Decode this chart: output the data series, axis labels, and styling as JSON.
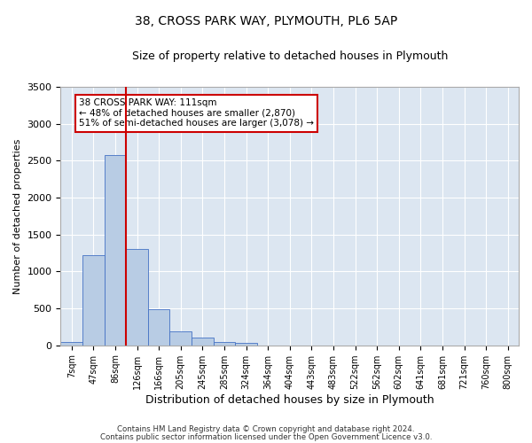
{
  "title": "38, CROSS PARK WAY, PLYMOUTH, PL6 5AP",
  "subtitle": "Size of property relative to detached houses in Plymouth",
  "xlabel": "Distribution of detached houses by size in Plymouth",
  "ylabel": "Number of detached properties",
  "categories": [
    "7sqm",
    "47sqm",
    "86sqm",
    "126sqm",
    "166sqm",
    "205sqm",
    "245sqm",
    "285sqm",
    "324sqm",
    "364sqm",
    "404sqm",
    "443sqm",
    "483sqm",
    "522sqm",
    "562sqm",
    "602sqm",
    "641sqm",
    "681sqm",
    "721sqm",
    "760sqm",
    "800sqm"
  ],
  "values": [
    50,
    1220,
    2580,
    1310,
    490,
    190,
    100,
    50,
    30,
    0,
    0,
    0,
    0,
    0,
    0,
    0,
    0,
    0,
    0,
    0,
    0
  ],
  "bar_color": "#b8cce4",
  "bar_edgecolor": "#4472c4",
  "vline_x": 2.5,
  "vline_color": "#cc0000",
  "annotation_text": "38 CROSS PARK WAY: 111sqm\n← 48% of detached houses are smaller (2,870)\n51% of semi-detached houses are larger (3,078) →",
  "annotation_box_color": "#ffffff",
  "annotation_box_edgecolor": "#cc0000",
  "ylim": [
    0,
    3500
  ],
  "yticks": [
    0,
    500,
    1000,
    1500,
    2000,
    2500,
    3000,
    3500
  ],
  "background_color": "#ffffff",
  "plot_bg_color": "#dce6f1",
  "grid_color": "#ffffff",
  "footer1": "Contains HM Land Registry data © Crown copyright and database right 2024.",
  "footer2": "Contains public sector information licensed under the Open Government Licence v3.0."
}
